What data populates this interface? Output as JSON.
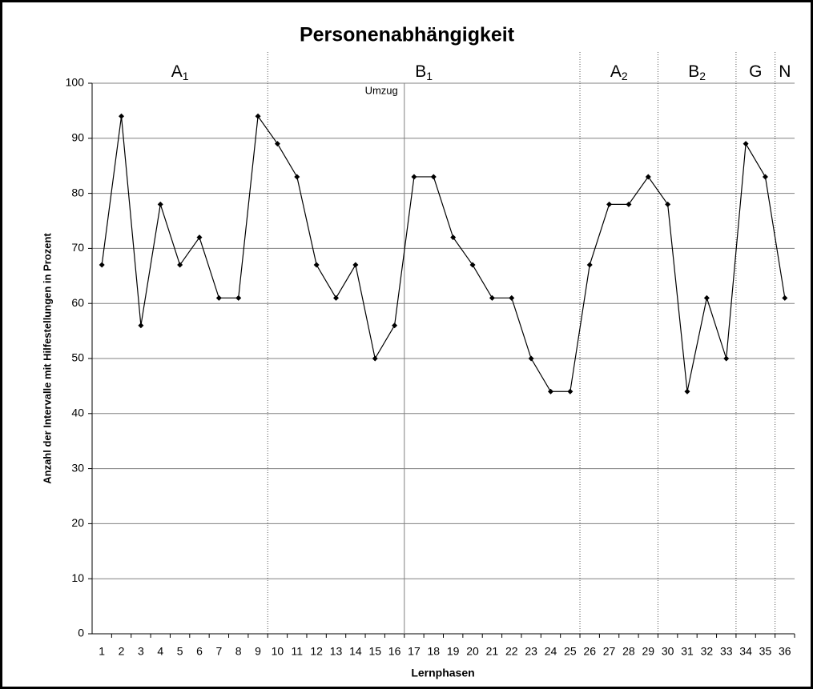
{
  "chart_data": {
    "type": "line",
    "title": "Personenabhängigkeit",
    "x_label": "Lernphasen",
    "y_label": "Anzahl der Intervalle mit Hilfestellungen in Prozent",
    "categories": [
      "1",
      "2",
      "3",
      "4",
      "5",
      "6",
      "7",
      "8",
      "9",
      "10",
      "11",
      "12",
      "13",
      "14",
      "15",
      "16",
      "17",
      "18",
      "19",
      "20",
      "21",
      "22",
      "23",
      "24",
      "25",
      "26",
      "27",
      "28",
      "29",
      "30",
      "31",
      "32",
      "33",
      "34",
      "35",
      "36"
    ],
    "values": [
      67,
      94,
      56,
      78,
      67,
      72,
      61,
      61,
      94,
      89,
      83,
      67,
      61,
      67,
      50,
      56,
      83,
      83,
      72,
      67,
      61,
      61,
      50,
      44,
      44,
      67,
      78,
      78,
      83,
      78,
      44,
      61,
      50,
      89,
      83,
      61
    ],
    "color": "#000000",
    "ylim": [
      0,
      100
    ],
    "yticks": [
      0,
      10,
      20,
      30,
      40,
      50,
      60,
      70,
      80,
      90,
      100
    ],
    "grid": true,
    "phases": [
      {
        "name": "A",
        "sub": "1",
        "from": 1,
        "to": 9
      },
      {
        "name": "B",
        "sub": "1",
        "from": 10,
        "to": 25
      },
      {
        "name": "A",
        "sub": "2",
        "from": 26,
        "to": 29
      },
      {
        "name": "B",
        "sub": "2",
        "from": 30,
        "to": 33
      },
      {
        "name": "G",
        "from": 34,
        "to": 35
      },
      {
        "name": "N",
        "from": 36,
        "to": 36
      }
    ],
    "annotations": [
      {
        "text": "Umzug",
        "after": 16
      }
    ]
  }
}
